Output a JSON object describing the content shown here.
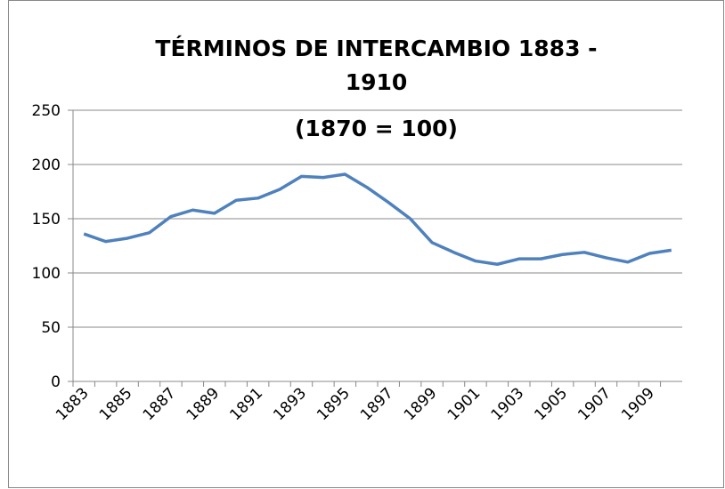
{
  "chart_data": {
    "type": "line",
    "title": "TÉRMINOS DE INTERCAMBIO 1883 - 1910",
    "subtitle": "(1870 = 100)",
    "categories": [
      "1883",
      null,
      "1885",
      null,
      "1887",
      null,
      "1889",
      null,
      "1891",
      null,
      "1893",
      null,
      "1895",
      null,
      "1897",
      null,
      "1899",
      null,
      "1901",
      null,
      "1903",
      null,
      "1905",
      null,
      "1907",
      null,
      "1909",
      null
    ],
    "series": [
      {
        "name": "Términos de intercambio",
        "color": "#4f81bd",
        "values": [
          136,
          129,
          132,
          137,
          152,
          158,
          155,
          167,
          169,
          177,
          189,
          188,
          191,
          179,
          165,
          150,
          128,
          119,
          111,
          108,
          113,
          113,
          117,
          119,
          114,
          110,
          118,
          121
        ]
      }
    ],
    "ylim": [
      0,
      250
    ],
    "yticks": [
      0,
      50,
      100,
      150,
      200,
      250
    ],
    "grid": true,
    "legend": false
  }
}
